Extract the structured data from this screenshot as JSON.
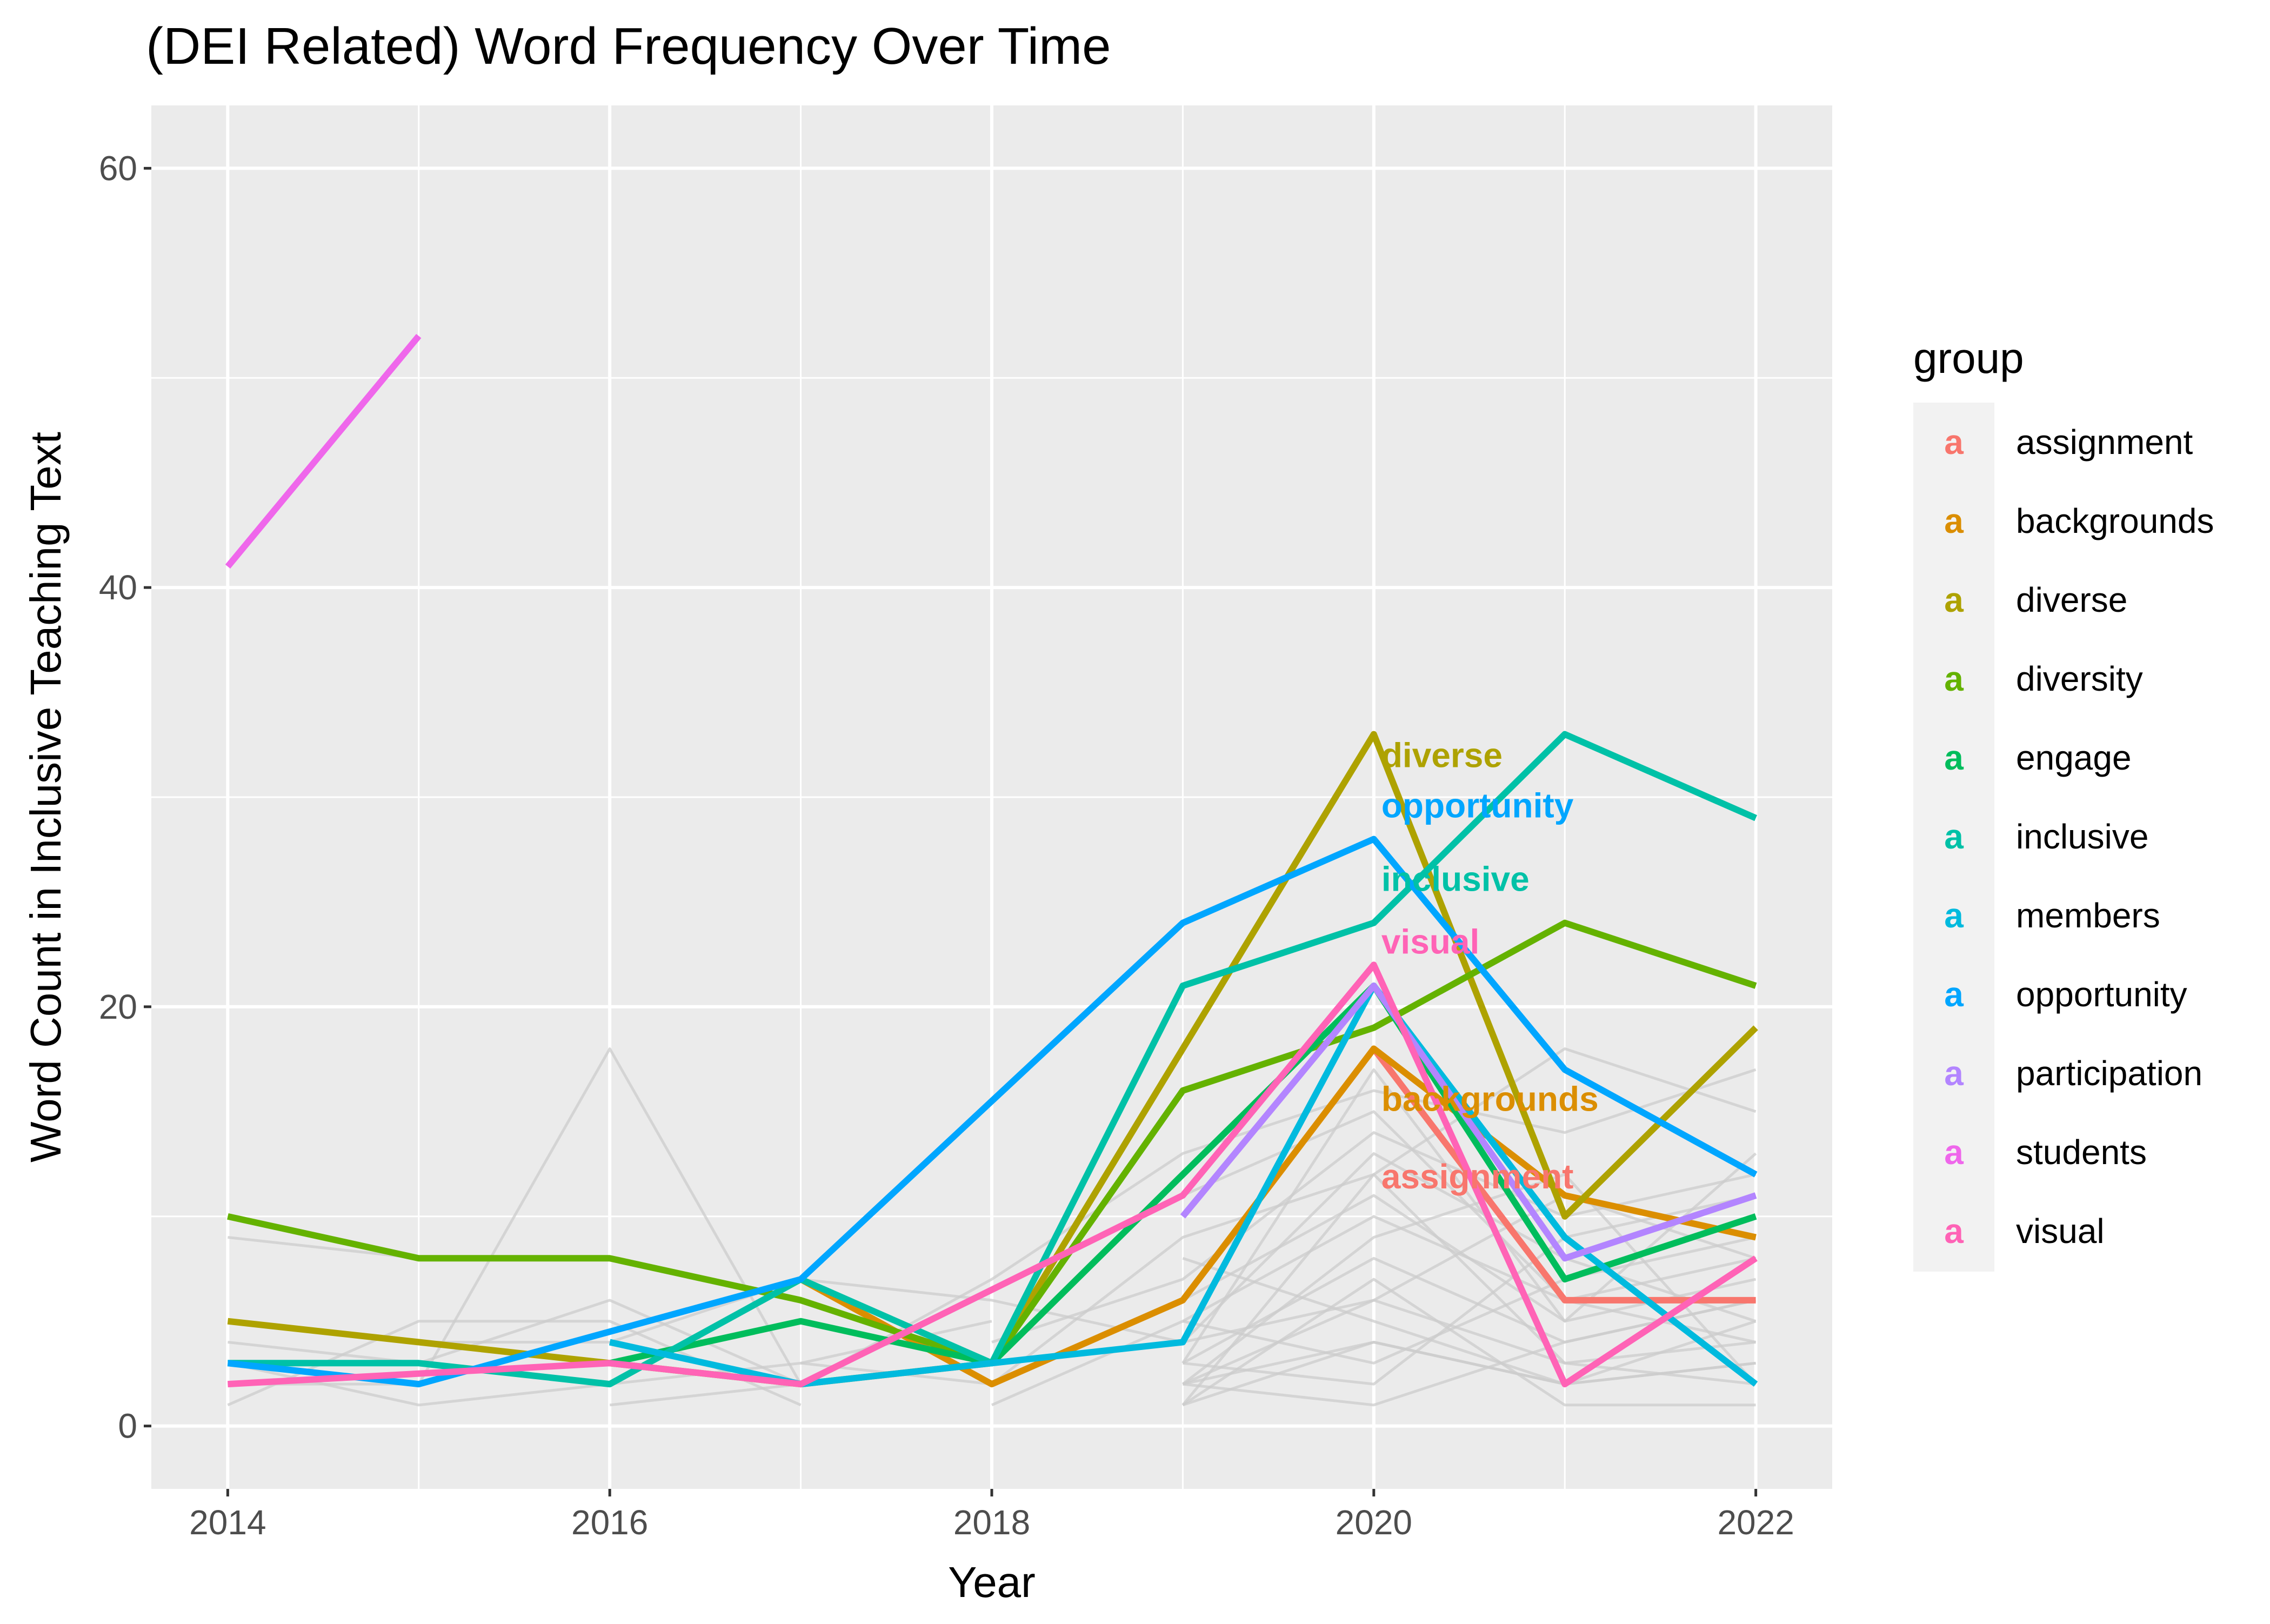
{
  "chart_data": {
    "type": "line",
    "title": "(DEI Related) Word Frequency Over Time",
    "xlabel": "Year",
    "ylabel": "Word Count in Inclusive Teaching Text",
    "xlim": [
      2013.6,
      2022.4
    ],
    "ylim": [
      -3,
      63
    ],
    "x_ticks": [
      2014,
      2016,
      2018,
      2020,
      2022
    ],
    "y_ticks": [
      0,
      20,
      40,
      60
    ],
    "grid": true,
    "legend": {
      "title": "group",
      "placement": "right",
      "key_glyph": "a"
    },
    "background_series_color": "#cccccc",
    "background_series": [
      [
        [
          2014,
          9
        ],
        [
          2015,
          8
        ],
        [
          2016,
          8
        ]
      ],
      [
        [
          2014,
          4
        ],
        [
          2015,
          3
        ],
        [
          2016,
          6
        ],
        [
          2017,
          2
        ]
      ],
      [
        [
          2014,
          1
        ],
        [
          2015,
          5
        ],
        [
          2016,
          5
        ],
        [
          2017,
          1
        ]
      ],
      [
        [
          2014,
          2
        ],
        [
          2015,
          2
        ],
        [
          2016,
          18
        ],
        [
          2017,
          2
        ]
      ],
      [
        [
          2014,
          3
        ],
        [
          2015,
          1
        ],
        [
          2016,
          2
        ],
        [
          2017,
          3
        ],
        [
          2018,
          5
        ]
      ],
      [
        [
          2015,
          4
        ],
        [
          2016,
          4
        ],
        [
          2017,
          7
        ],
        [
          2018,
          6
        ],
        [
          2019,
          4
        ]
      ],
      [
        [
          2016,
          1
        ],
        [
          2017,
          2
        ],
        [
          2018,
          7
        ],
        [
          2019,
          13
        ],
        [
          2020,
          16
        ],
        [
          2021,
          14
        ],
        [
          2022,
          17
        ]
      ],
      [
        [
          2017,
          3
        ],
        [
          2018,
          2
        ],
        [
          2019,
          9
        ],
        [
          2020,
          12
        ],
        [
          2021,
          18
        ],
        [
          2022,
          15
        ]
      ],
      [
        [
          2018,
          4
        ],
        [
          2019,
          7
        ],
        [
          2020,
          14
        ],
        [
          2021,
          10
        ],
        [
          2022,
          12
        ]
      ],
      [
        [
          2018,
          1
        ],
        [
          2019,
          5
        ],
        [
          2020,
          10
        ],
        [
          2021,
          6
        ],
        [
          2022,
          8
        ]
      ],
      [
        [
          2019,
          3
        ],
        [
          2020,
          8
        ],
        [
          2021,
          4
        ],
        [
          2022,
          6
        ]
      ],
      [
        [
          2019,
          2
        ],
        [
          2020,
          6
        ],
        [
          2021,
          3
        ],
        [
          2022,
          4
        ]
      ],
      [
        [
          2019,
          1
        ],
        [
          2020,
          4
        ],
        [
          2021,
          2
        ],
        [
          2022,
          3
        ]
      ],
      [
        [
          2019,
          6
        ],
        [
          2020,
          11
        ],
        [
          2021,
          5
        ],
        [
          2022,
          7
        ]
      ],
      [
        [
          2019,
          4
        ],
        [
          2020,
          13
        ],
        [
          2021,
          8
        ],
        [
          2022,
          5
        ]
      ],
      [
        [
          2019,
          2
        ],
        [
          2020,
          9
        ],
        [
          2021,
          12
        ],
        [
          2022,
          2
        ]
      ],
      [
        [
          2019,
          5
        ],
        [
          2020,
          3
        ],
        [
          2021,
          7
        ],
        [
          2022,
          9
        ]
      ],
      [
        [
          2019,
          1
        ],
        [
          2020,
          7
        ],
        [
          2021,
          1
        ],
        [
          2022,
          1
        ]
      ],
      [
        [
          2019,
          3
        ],
        [
          2020,
          2
        ],
        [
          2021,
          9
        ],
        [
          2022,
          11
        ]
      ],
      [
        [
          2019,
          8
        ],
        [
          2020,
          5
        ],
        [
          2021,
          2
        ],
        [
          2022,
          3
        ]
      ],
      [
        [
          2019,
          2
        ],
        [
          2020,
          1
        ],
        [
          2021,
          4
        ],
        [
          2022,
          6
        ]
      ],
      [
        [
          2019,
          11
        ],
        [
          2020,
          15
        ],
        [
          2021,
          6
        ],
        [
          2022,
          4
        ]
      ],
      [
        [
          2019,
          1
        ],
        [
          2020,
          12
        ],
        [
          2021,
          3
        ],
        [
          2022,
          2
        ]
      ],
      [
        [
          2019,
          4
        ],
        [
          2020,
          6
        ],
        [
          2021,
          11
        ],
        [
          2022,
          8
        ]
      ],
      [
        [
          2019,
          3
        ],
        [
          2020,
          17
        ],
        [
          2021,
          5
        ],
        [
          2022,
          13
        ]
      ],
      [
        [
          2019,
          2
        ],
        [
          2020,
          4
        ],
        [
          2021,
          2
        ],
        [
          2022,
          5
        ]
      ]
    ],
    "series": [
      {
        "name": "assignment",
        "color": "#F8766D",
        "label": "assignment",
        "points": [
          [
            2020,
            18
          ],
          [
            2021,
            6
          ],
          [
            2022,
            6
          ]
        ]
      },
      {
        "name": "backgrounds",
        "color": "#DB8E00",
        "label": "backgrounds",
        "points": [
          [
            2017,
            7
          ],
          [
            2018,
            2
          ],
          [
            2019,
            6
          ],
          [
            2020,
            18
          ],
          [
            2021,
            11
          ],
          [
            2022,
            9
          ]
        ]
      },
      {
        "name": "diverse",
        "color": "#AEA200",
        "label": "diverse",
        "points": [
          [
            2014,
            5
          ],
          [
            2017,
            2
          ],
          [
            2018,
            3
          ],
          [
            2019,
            18
          ],
          [
            2020,
            33
          ],
          [
            2021,
            10
          ],
          [
            2022,
            19
          ]
        ]
      },
      {
        "name": "diversity",
        "color": "#64B200",
        "label": "",
        "points": [
          [
            2014,
            10
          ],
          [
            2015,
            8
          ],
          [
            2016,
            8
          ],
          [
            2017,
            6
          ],
          [
            2018,
            3
          ],
          [
            2019,
            16
          ],
          [
            2020,
            19
          ],
          [
            2021,
            24
          ],
          [
            2022,
            21
          ]
        ]
      },
      {
        "name": "engage",
        "color": "#00BD5C",
        "label": "",
        "points": [
          [
            2016,
            3
          ],
          [
            2017,
            5
          ],
          [
            2018,
            3
          ],
          [
            2019,
            12
          ],
          [
            2020,
            21
          ],
          [
            2021,
            7
          ],
          [
            2022,
            10
          ]
        ]
      },
      {
        "name": "inclusive",
        "color": "#00C1A7",
        "label": "inclusive",
        "points": [
          [
            2014,
            3
          ],
          [
            2015,
            3
          ],
          [
            2016,
            2
          ],
          [
            2017,
            7
          ],
          [
            2018,
            3
          ],
          [
            2019,
            21
          ],
          [
            2020,
            24
          ],
          [
            2021,
            33
          ],
          [
            2022,
            29
          ]
        ]
      },
      {
        "name": "members",
        "color": "#00BADE",
        "label": "",
        "points": [
          [
            2016,
            4
          ],
          [
            2017,
            2
          ],
          [
            2018,
            3
          ],
          [
            2019,
            4
          ],
          [
            2020,
            21
          ],
          [
            2021,
            9
          ],
          [
            2022,
            2
          ]
        ]
      },
      {
        "name": "opportunity",
        "color": "#00A6FF",
        "label": "opportunity",
        "points": [
          [
            2014,
            3
          ],
          [
            2015,
            2
          ],
          [
            2017,
            7
          ],
          [
            2019,
            24
          ],
          [
            2020,
            28
          ],
          [
            2021,
            17
          ],
          [
            2022,
            12
          ]
        ]
      },
      {
        "name": "participation",
        "color": "#B385FF",
        "label": "",
        "points": [
          [
            2019,
            10
          ],
          [
            2020,
            21
          ],
          [
            2021,
            8
          ],
          [
            2022,
            11
          ]
        ]
      },
      {
        "name": "students",
        "color": "#EF67EB",
        "label": "",
        "points": [
          [
            2014,
            41
          ],
          [
            2015,
            52
          ]
        ]
      },
      {
        "name": "visual",
        "color": "#FF63B6",
        "label": "visual",
        "points": [
          [
            2014,
            2
          ],
          [
            2016,
            3
          ],
          [
            2017,
            2
          ],
          [
            2019,
            11
          ],
          [
            2020,
            22
          ],
          [
            2021,
            2
          ],
          [
            2022,
            8
          ]
        ]
      }
    ],
    "annotations": [
      {
        "text": "diverse",
        "x": 2020,
        "y": 32,
        "color": "#AEA200"
      },
      {
        "text": "opportunity",
        "x": 2020,
        "y": 29.6,
        "color": "#00A6FF"
      },
      {
        "text": "inclusive",
        "x": 2020,
        "y": 26.1,
        "color": "#00C1A7"
      },
      {
        "text": "visual",
        "x": 2020,
        "y": 23.1,
        "color": "#FF63B6"
      },
      {
        "text": "backgrounds",
        "x": 2020,
        "y": 15.6,
        "color": "#DB8E00"
      },
      {
        "text": "assignment",
        "x": 2020,
        "y": 11.9,
        "color": "#F8766D"
      }
    ]
  }
}
